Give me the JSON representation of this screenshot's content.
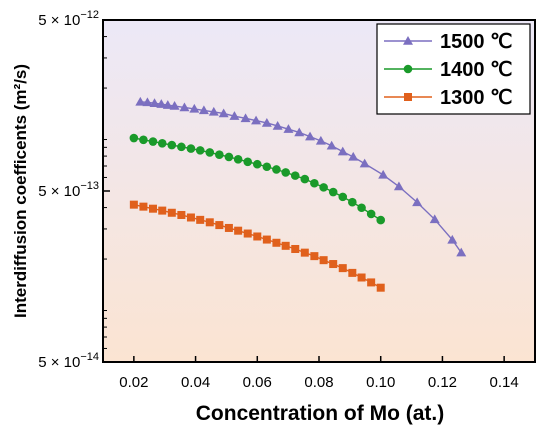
{
  "chart_data": {
    "type": "line",
    "xlabel": "Concentration of Mo (at.)",
    "ylabel": "Interdiffusion coefficents (m²/s)",
    "xlim": [
      0.01,
      0.15
    ],
    "ylim": [
      5e-14,
      5e-12
    ],
    "yscale": "log",
    "xticks": [
      "0.02",
      "0.04",
      "0.06",
      "0.08",
      "0.10",
      "0.12",
      "0.14"
    ],
    "xtick_values": [
      0.02,
      0.04,
      0.06,
      0.08,
      0.1,
      0.12,
      0.14
    ],
    "yticks": [
      {
        "value": 5e-12,
        "mant": "5 × 10",
        "exp": "−12"
      },
      {
        "value": 5e-13,
        "mant": "5 × 10",
        "exp": "−13"
      },
      {
        "value": 5e-14,
        "mant": "5 × 10",
        "exp": "−14"
      }
    ],
    "legend_position": "top-right",
    "background_gradient": [
      "#ece8f7",
      "#fbe4d2"
    ],
    "series": [
      {
        "name": "1500 ℃",
        "color": "#7b6fc0",
        "marker": "triangle",
        "x": [
          0.0221,
          0.0244,
          0.0267,
          0.0289,
          0.031,
          0.0332,
          0.0364,
          0.0396,
          0.0427,
          0.0459,
          0.0491,
          0.0526,
          0.0562,
          0.0596,
          0.0631,
          0.0666,
          0.0701,
          0.0736,
          0.0771,
          0.0806,
          0.0841,
          0.0877,
          0.0911,
          0.0948,
          0.1008,
          0.1059,
          0.1118,
          0.1175,
          0.1232,
          0.1261
        ],
        "y": [
          1.66e-12,
          1.65e-12,
          1.63e-12,
          1.61e-12,
          1.59e-12,
          1.57e-12,
          1.54e-12,
          1.51e-12,
          1.48e-12,
          1.45e-12,
          1.42e-12,
          1.37e-12,
          1.33e-12,
          1.29e-12,
          1.25e-12,
          1.2e-12,
          1.15e-12,
          1.1e-12,
          1.04e-12,
          9.82e-13,
          9.19e-13,
          8.5e-13,
          7.91e-13,
          7.23e-13,
          6.21e-13,
          5.31e-13,
          4.29e-13,
          3.41e-13,
          2.59e-13,
          2.18e-13
        ]
      },
      {
        "name": "1400 ℃",
        "color": "#1a9a2a",
        "marker": "circle",
        "x": [
          0.02,
          0.0231,
          0.0262,
          0.0292,
          0.0323,
          0.0354,
          0.0385,
          0.0415,
          0.0446,
          0.0477,
          0.0508,
          0.0538,
          0.0569,
          0.06,
          0.0631,
          0.0662,
          0.0692,
          0.0723,
          0.0754,
          0.0785,
          0.0815,
          0.0846,
          0.0877,
          0.0908,
          0.0938,
          0.0969,
          0.1
        ],
        "y": [
          1.02e-12,
          9.96e-13,
          9.73e-13,
          9.5e-13,
          9.28e-13,
          9.06e-13,
          8.85e-13,
          8.64e-13,
          8.4e-13,
          8.15e-13,
          7.91e-13,
          7.66e-13,
          7.41e-13,
          7.17e-13,
          6.93e-13,
          6.68e-13,
          6.42e-13,
          6.15e-13,
          5.87e-13,
          5.55e-13,
          5.25e-13,
          4.93e-13,
          4.62e-13,
          4.3e-13,
          3.99e-13,
          3.67e-13,
          3.38e-13
        ]
      },
      {
        "name": "1300 ℃",
        "color": "#e0601c",
        "marker": "square",
        "x": [
          0.02,
          0.0231,
          0.0262,
          0.0292,
          0.0323,
          0.0354,
          0.0385,
          0.0415,
          0.0446,
          0.0477,
          0.0508,
          0.0538,
          0.0569,
          0.06,
          0.0631,
          0.0662,
          0.0692,
          0.0723,
          0.0754,
          0.0785,
          0.0815,
          0.0846,
          0.0877,
          0.0908,
          0.0938,
          0.0969,
          0.1
        ],
        "y": [
          4.16e-13,
          4.05e-13,
          3.94e-13,
          3.84e-13,
          3.73e-13,
          3.62e-13,
          3.5e-13,
          3.39e-13,
          3.28e-13,
          3.16e-13,
          3.04e-13,
          2.93e-13,
          2.82e-13,
          2.71e-13,
          2.6e-13,
          2.49e-13,
          2.39e-13,
          2.29e-13,
          2.18e-13,
          2.08e-13,
          1.97e-13,
          1.87e-13,
          1.77e-13,
          1.66e-13,
          1.56e-13,
          1.46e-13,
          1.36e-13
        ]
      }
    ]
  }
}
